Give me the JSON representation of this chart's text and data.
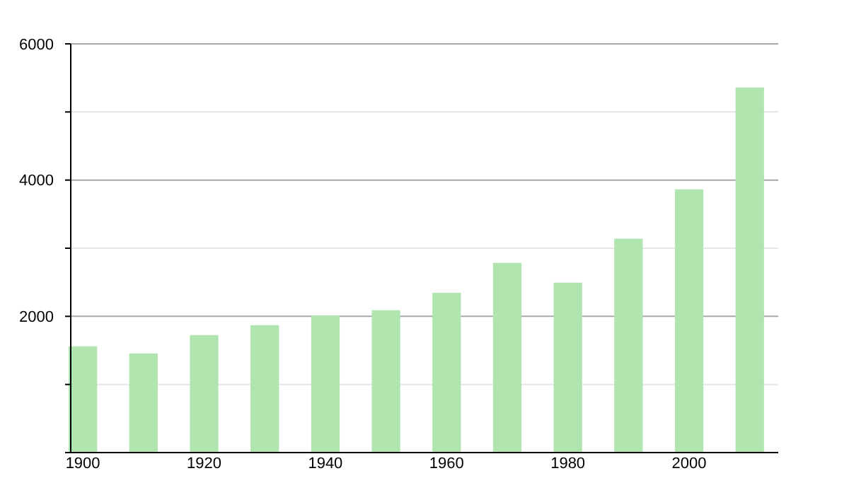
{
  "chart_data": {
    "type": "bar",
    "x": [
      1900,
      1910,
      1920,
      1930,
      1940,
      1950,
      1960,
      1970,
      1980,
      1990,
      2000,
      2010
    ],
    "values": [
      1560,
      1455,
      1725,
      1870,
      2015,
      2090,
      2345,
      2785,
      2495,
      3140,
      3865,
      5360
    ],
    "color": "#b0e5b0",
    "xlim": [
      1898,
      2014.7
    ],
    "xticks": [
      1900,
      1920,
      1940,
      1960,
      1980,
      2000
    ],
    "ylim": [
      0,
      6000
    ],
    "yticks": [
      {
        "value": 0,
        "label": null
      },
      {
        "value": 1000,
        "label": null
      },
      2000,
      {
        "value": 3000,
        "label": null
      },
      4000,
      {
        "value": 5000,
        "label": null
      },
      6000
    ],
    "grid": "y"
  }
}
